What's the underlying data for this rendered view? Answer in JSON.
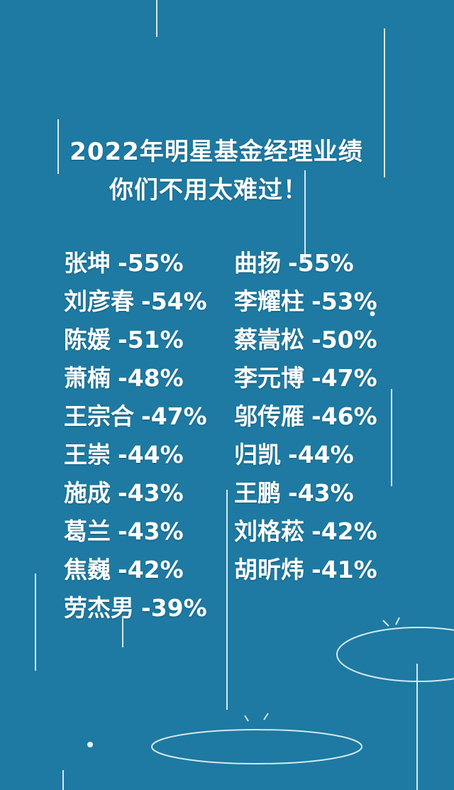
{
  "title_line1": "2022年明星基金经理业绩",
  "title_line2": "你们不用太难过！",
  "colors": {
    "background": "#1e7aa2",
    "text": "#ffffff",
    "decor_lines": "#e8f4fa"
  },
  "managers_left": [
    {
      "name": "张坤",
      "change": "-55%"
    },
    {
      "name": "刘彦春",
      "change": "-54%"
    },
    {
      "name": "陈媛",
      "change": "-51%"
    },
    {
      "name": "萧楠",
      "change": "-48%"
    },
    {
      "name": "王宗合",
      "change": "-47%"
    },
    {
      "name": "王崇",
      "change": "-44%"
    },
    {
      "name": "施成",
      "change": "-43%"
    },
    {
      "name": "葛兰",
      "change": "-43%"
    },
    {
      "name": "焦巍",
      "change": "-42%"
    },
    {
      "name": "劳杰男",
      "change": "-39%"
    }
  ],
  "managers_right": [
    {
      "name": "曲扬",
      "change": "-55%"
    },
    {
      "name": "李耀柱",
      "change": "-53%"
    },
    {
      "name": "蔡嵩松",
      "change": "-50%"
    },
    {
      "name": "李元博",
      "change": "-47%"
    },
    {
      "name": "邬传雁",
      "change": "-46%"
    },
    {
      "name": "归凯",
      "change": "-44%"
    },
    {
      "name": "王鹏",
      "change": "-43%"
    },
    {
      "name": "刘格菘",
      "change": "-42%"
    },
    {
      "name": "胡昕炜",
      "change": "-41%"
    }
  ]
}
